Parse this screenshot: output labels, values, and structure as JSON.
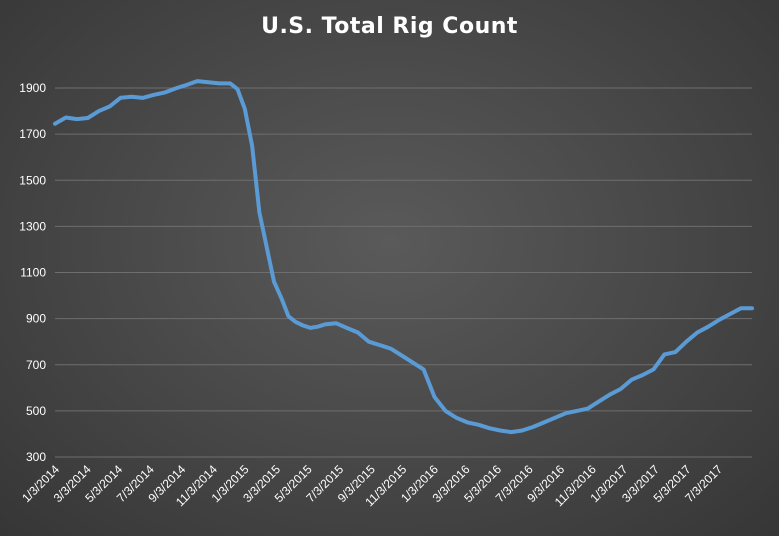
{
  "chart_data": {
    "type": "line",
    "title": "U.S. Total Rig Count",
    "xlabel": "",
    "ylabel": "",
    "ylim": [
      300,
      1900
    ],
    "yticks": [
      300,
      500,
      700,
      900,
      1100,
      1300,
      1500,
      1700,
      1900
    ],
    "grid": true,
    "legend": "none",
    "line_color": "#5b9bd5",
    "x_tick_labels": [
      "1/3/2014",
      "3/3/2014",
      "5/3/2014",
      "7/3/2014",
      "9/3/2014",
      "11/3/2014",
      "1/3/2015",
      "3/3/2015",
      "5/3/2015",
      "7/3/2015",
      "9/3/2015",
      "11/3/2015",
      "1/3/2016",
      "3/3/2016",
      "5/3/2016",
      "7/3/2016",
      "9/3/2016",
      "11/3/2016",
      "1/3/2017",
      "3/3/2017",
      "5/3/2017",
      "7/3/2017"
    ],
    "series": [
      {
        "x": [
          "2014-01-03",
          "2014-01-24",
          "2014-02-14",
          "2014-03-07",
          "2014-03-28",
          "2014-04-18",
          "2014-05-09",
          "2014-05-30",
          "2014-06-20",
          "2014-07-11",
          "2014-08-01",
          "2014-08-22",
          "2014-09-12",
          "2014-10-03",
          "2014-10-24",
          "2014-11-14",
          "2014-12-05",
          "2014-12-19",
          "2015-01-02",
          "2015-01-16",
          "2015-01-30",
          "2015-02-13",
          "2015-02-27",
          "2015-03-13",
          "2015-03-27",
          "2015-04-10",
          "2015-04-24",
          "2015-05-08",
          "2015-05-22",
          "2015-06-05",
          "2015-06-26",
          "2015-07-17",
          "2015-08-07",
          "2015-08-28",
          "2015-09-18",
          "2015-10-09",
          "2015-10-30",
          "2015-11-20",
          "2015-12-11",
          "2016-01-01",
          "2016-01-22",
          "2016-02-12",
          "2016-03-04",
          "2016-03-25",
          "2016-04-15",
          "2016-05-06",
          "2016-05-27",
          "2016-06-17",
          "2016-07-08",
          "2016-07-29",
          "2016-08-19",
          "2016-09-09",
          "2016-09-30",
          "2016-10-21",
          "2016-11-11",
          "2016-12-02",
          "2016-12-23",
          "2017-01-13",
          "2017-02-03",
          "2017-02-24",
          "2017-03-17",
          "2017-04-07",
          "2017-04-28",
          "2017-05-19",
          "2017-06-09",
          "2017-06-30",
          "2017-07-21",
          "2017-08-11",
          "2017-09-01"
        ],
        "values": [
          1745,
          1772,
          1765,
          1770,
          1800,
          1820,
          1858,
          1862,
          1857,
          1870,
          1880,
          1898,
          1913,
          1930,
          1925,
          1920,
          1920,
          1895,
          1810,
          1650,
          1360,
          1210,
          1060,
          990,
          910,
          885,
          870,
          860,
          865,
          875,
          880,
          860,
          840,
          800,
          785,
          770,
          740,
          710,
          680,
          560,
          500,
          470,
          450,
          440,
          425,
          415,
          408,
          415,
          430,
          450,
          470,
          490,
          500,
          510,
          540,
          570,
          595,
          635,
          655,
          680,
          745,
          755,
          800,
          840,
          865,
          895,
          920,
          945,
          945
        ]
      }
    ]
  }
}
